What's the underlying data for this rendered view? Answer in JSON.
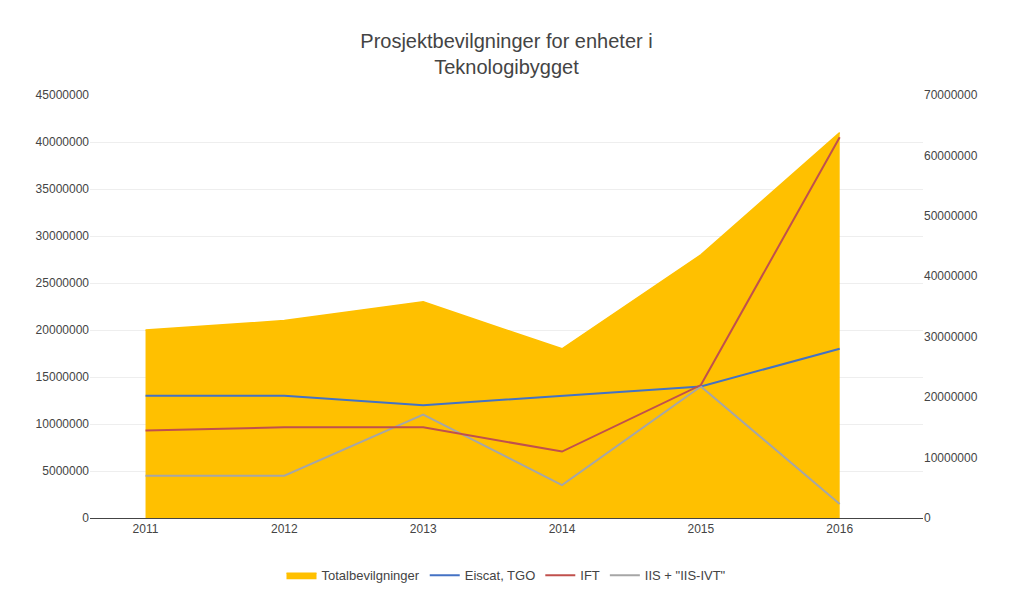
{
  "chart_data": {
    "type": "line",
    "title": "Prosjektbevilgninger for enheter i\nTeknologibygget",
    "x": [
      2011,
      2012,
      2013,
      2014,
      2015,
      2016
    ],
    "xlim": [
      2010.6,
      2016.6
    ],
    "xticks": [
      2011,
      2012,
      2013,
      2014,
      2015,
      2016
    ],
    "ylim": [
      0,
      45000000
    ],
    "yticks": [
      0,
      5000000,
      10000000,
      15000000,
      20000000,
      25000000,
      30000000,
      35000000,
      40000000,
      45000000
    ],
    "y2lim": [
      0,
      70000000
    ],
    "y2ticks": [
      0,
      10000000,
      20000000,
      30000000,
      40000000,
      50000000,
      60000000,
      70000000
    ],
    "grid": true,
    "legend": "bottom",
    "series": [
      {
        "name": "Totalbevilgninger",
        "type": "area",
        "color": "#FFC000",
        "values": [
          20000000,
          21000000,
          23000000,
          18000000,
          28000000,
          41000000
        ]
      },
      {
        "name": "Eiscat, TGO",
        "type": "line",
        "color": "#4472C4",
        "values": [
          13000000,
          13000000,
          12000000,
          13000000,
          14000000,
          18000000
        ]
      },
      {
        "name": "IFT",
        "type": "line",
        "axis": "y2",
        "color": "#C0504D",
        "values": [
          14500000,
          15000000,
          15000000,
          11000000,
          22000000,
          63000000
        ]
      },
      {
        "name": "IIS + \"IIS-IVT\"",
        "type": "line",
        "color": "#A6A6A6",
        "values": [
          4500000,
          4500000,
          11000000,
          3500000,
          14000000,
          1500000
        ]
      }
    ]
  }
}
